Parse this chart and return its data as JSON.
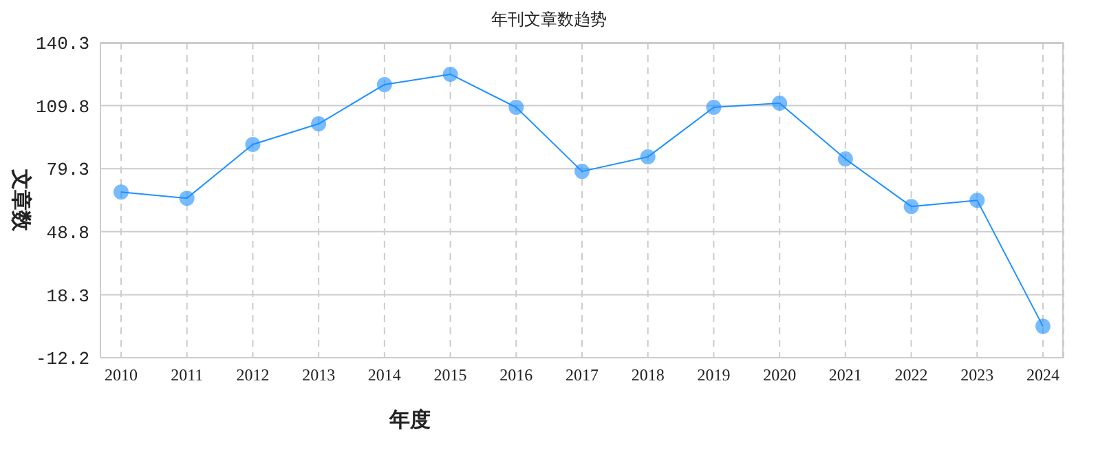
{
  "chart_data": {
    "type": "line",
    "title": "年刊文章数趋势",
    "xlabel": "年度",
    "ylabel": "文章数",
    "categories": [
      "2010",
      "2011",
      "2012",
      "2013",
      "2014",
      "2015",
      "2016",
      "2017",
      "2018",
      "2019",
      "2020",
      "2021",
      "2022",
      "2023",
      "2024"
    ],
    "series": [
      {
        "color": "#1e90ff",
        "values": [
          68,
          65,
          91,
          101,
          120,
          125,
          109,
          78,
          85,
          109,
          111,
          84,
          61,
          64,
          3
        ]
      }
    ],
    "ylim": [
      -12.2,
      140.3
    ],
    "yticks": [
      -12.2,
      18.3,
      48.8,
      79.3,
      109.8,
      140.3
    ],
    "grid": true,
    "marker": "circle",
    "line_style": "solid"
  }
}
